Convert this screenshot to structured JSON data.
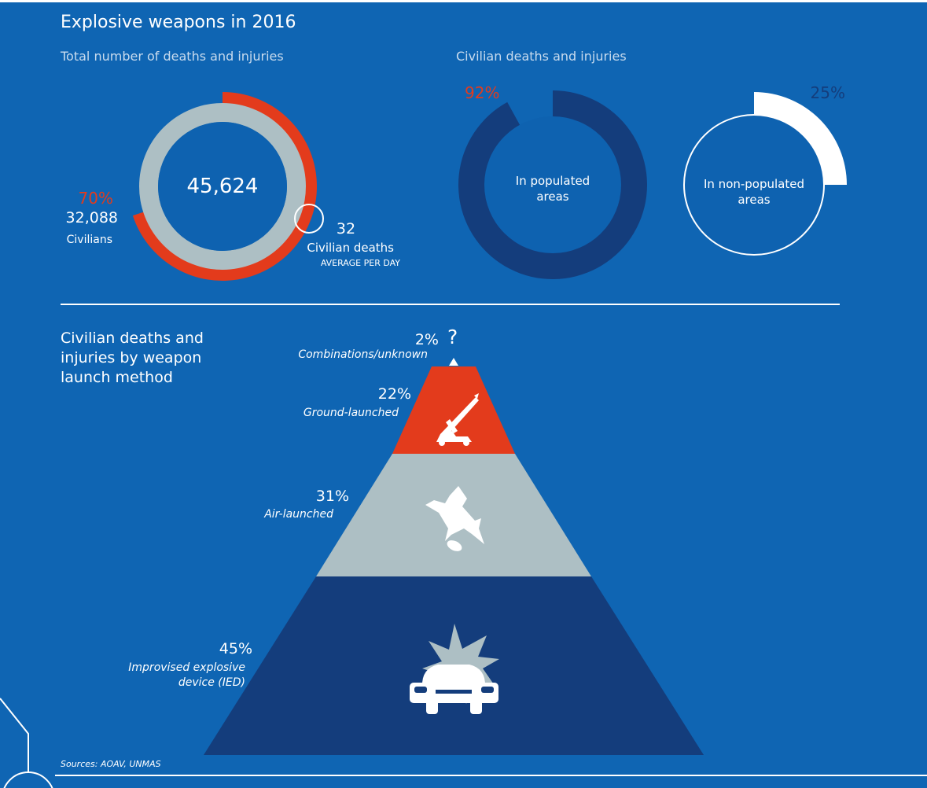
{
  "header": {
    "title": "Explosive weapons in 2016",
    "total_subtitle": "Total number of deaths and injuries",
    "civilian_subtitle": "Civilian deaths and injuries"
  },
  "total_donut": {
    "center_value": "45,624",
    "civilian_pct": "70%",
    "civilian_count": "32,088",
    "civilian_label": "Civilians",
    "per_day_value": "32",
    "per_day_label": "Civilian deaths",
    "per_day_sublabel": "AVERAGE PER DAY"
  },
  "populated": {
    "pct": "92%",
    "label": "In populated areas"
  },
  "non_populated": {
    "pct": "25%",
    "label": "In non-populated areas"
  },
  "pyramid": {
    "heading": "Civilian deaths and injuries by weapon launch method",
    "combinations": {
      "pct": "2%",
      "label": "Combinations/unknown",
      "symbol": "?"
    },
    "ground": {
      "pct": "22%",
      "label": "Ground-launched",
      "icon": "rocket-launcher-icon"
    },
    "air": {
      "pct": "31%",
      "label": "Air-launched",
      "icon": "fighter-jet-icon"
    },
    "ied": {
      "pct": "45%",
      "label": "Improvised explosive device (IED)",
      "icon": "car-bomb-icon"
    }
  },
  "sources": "Sources: AOAV, UNMAS",
  "chart_data": [
    {
      "type": "pie",
      "title": "Total number of deaths and injuries",
      "total": 45624,
      "slices": [
        {
          "name": "Civilians",
          "value": 70,
          "count": 32088
        }
      ]
    },
    {
      "type": "pie",
      "title": "Civilian deaths and injuries",
      "slices": [
        {
          "name": "In populated areas",
          "value": 92
        },
        {
          "name": "In non-populated areas",
          "value": 25
        }
      ]
    },
    {
      "type": "bar",
      "title": "Civilian deaths and injuries by weapon launch method",
      "categories": [
        "Combinations/unknown",
        "Ground-launched",
        "Air-launched",
        "Improvised explosive device (IED)"
      ],
      "values": [
        2,
        22,
        31,
        45
      ]
    }
  ],
  "colors": {
    "background": "#0f65b3",
    "red": "#e33b1c",
    "grey": "#adbfc4",
    "navy": "#143d7c",
    "inner_blue": "#0e62b0"
  }
}
